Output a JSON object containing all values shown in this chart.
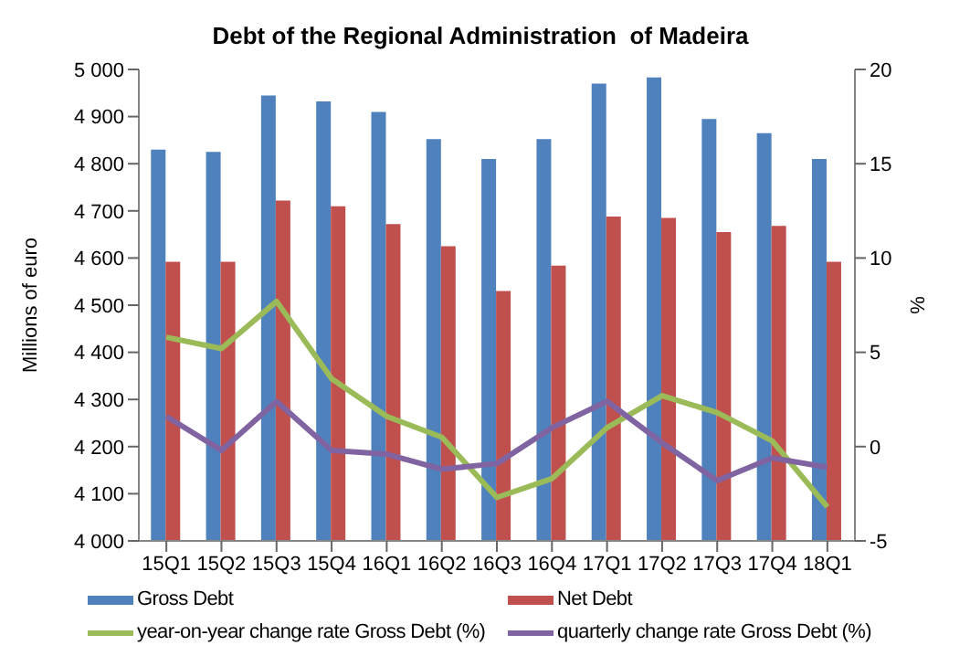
{
  "chart_data": {
    "type": "bar",
    "title": "Debt of the Regional Administration  of Madeira",
    "categories": [
      "15Q1",
      "15Q2",
      "15Q3",
      "15Q4",
      "16Q1",
      "16Q2",
      "16Q3",
      "16Q4",
      "17Q1",
      "17Q2",
      "17Q3",
      "17Q4",
      "18Q1"
    ],
    "series": [
      {
        "name": "Gross Debt",
        "color": "#4f81bd",
        "values": [
          4830,
          4825,
          4945,
          4932,
          4910,
          4852,
          4810,
          4852,
          4970,
          4983,
          4895,
          4865,
          4810
        ]
      },
      {
        "name": "Net Debt",
        "color": "#c0504d",
        "values": [
          4592,
          4592,
          4722,
          4710,
          4672,
          4625,
          4530,
          4584,
          4688,
          4685,
          4655,
          4668,
          4592
        ]
      },
      {
        "name": "year-on-year change rate Gross Debt (%)",
        "type": "line",
        "axis": "y2",
        "color": "#9bbb59",
        "values": [
          5.8,
          5.2,
          7.7,
          3.6,
          1.6,
          0.5,
          -2.7,
          -1.7,
          1.0,
          2.7,
          1.8,
          0.3,
          -3.2
        ]
      },
      {
        "name": "quarterly change rate Gross Debt (%)",
        "type": "line",
        "axis": "y2",
        "color": "#8064a2",
        "values": [
          1.6,
          -0.2,
          2.4,
          -0.2,
          -0.4,
          -1.2,
          -0.9,
          1.0,
          2.4,
          0.2,
          -1.8,
          -0.6,
          -1.1
        ]
      }
    ],
    "ylabel": "Millions of euro",
    "y2label": "%",
    "ylim": [
      4000,
      5000
    ],
    "yticks": [
      {
        "value": 4000,
        "label": "4 000"
      },
      {
        "value": 4100,
        "label": "4 100"
      },
      {
        "value": 4200,
        "label": "4 200"
      },
      {
        "value": 4300,
        "label": "4 300"
      },
      {
        "value": 4400,
        "label": "4 400"
      },
      {
        "value": 4500,
        "label": "4 500"
      },
      {
        "value": 4600,
        "label": "4 600"
      },
      {
        "value": 4700,
        "label": "4 700"
      },
      {
        "value": 4800,
        "label": "4 800"
      },
      {
        "value": 4900,
        "label": "4 900"
      },
      {
        "value": 5000,
        "label": "5 000"
      }
    ],
    "y2lim": [
      -5,
      20
    ],
    "y2ticks": [
      -5,
      0,
      5,
      10,
      15,
      20
    ],
    "legend": "bottom",
    "marker": "none",
    "line_style": "solid"
  }
}
